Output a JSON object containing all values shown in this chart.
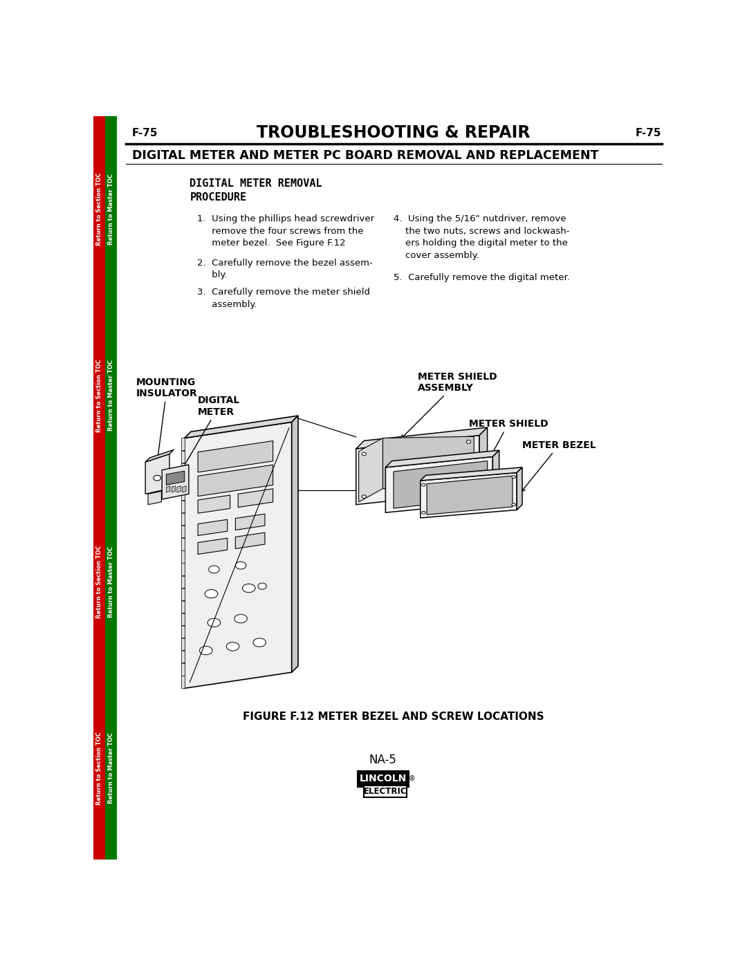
{
  "page_num": "F-75",
  "header_title": "TROUBLESHOOTING & REPAIR",
  "section_title": "DIGITAL METER AND METER PC BOARD REMOVAL AND REPLACEMENT",
  "procedure_title": "DIGITAL METER REMOVAL\nPROCEDURE",
  "step1": "1.  Using the phillips head screwdriver\n     remove the four screws from the\n     meter bezel.  See Figure F.12",
  "step2": "2.  Carefully remove the bezel assem-\n     bly.",
  "step3": "3.  Carefully remove the meter shield\n     assembly.",
  "step4": "4.  Using the 5/16\" nutdriver, remove\n    the two nuts, screws and lockwash-\n    ers holding the digital meter to the\n    cover assembly.",
  "step5": "5.  Carefully remove the digital meter.",
  "figure_caption": "FIGURE F.12 METER BEZEL AND SCREW LOCATIONS",
  "model": "NA-5",
  "sidebar_red_text": "Return to Section TOC",
  "sidebar_green_text": "Return to Master TOC",
  "bg_color": "#ffffff",
  "sidebar_red": "#cc0000",
  "sidebar_green": "#007700",
  "text_color": "#000000"
}
